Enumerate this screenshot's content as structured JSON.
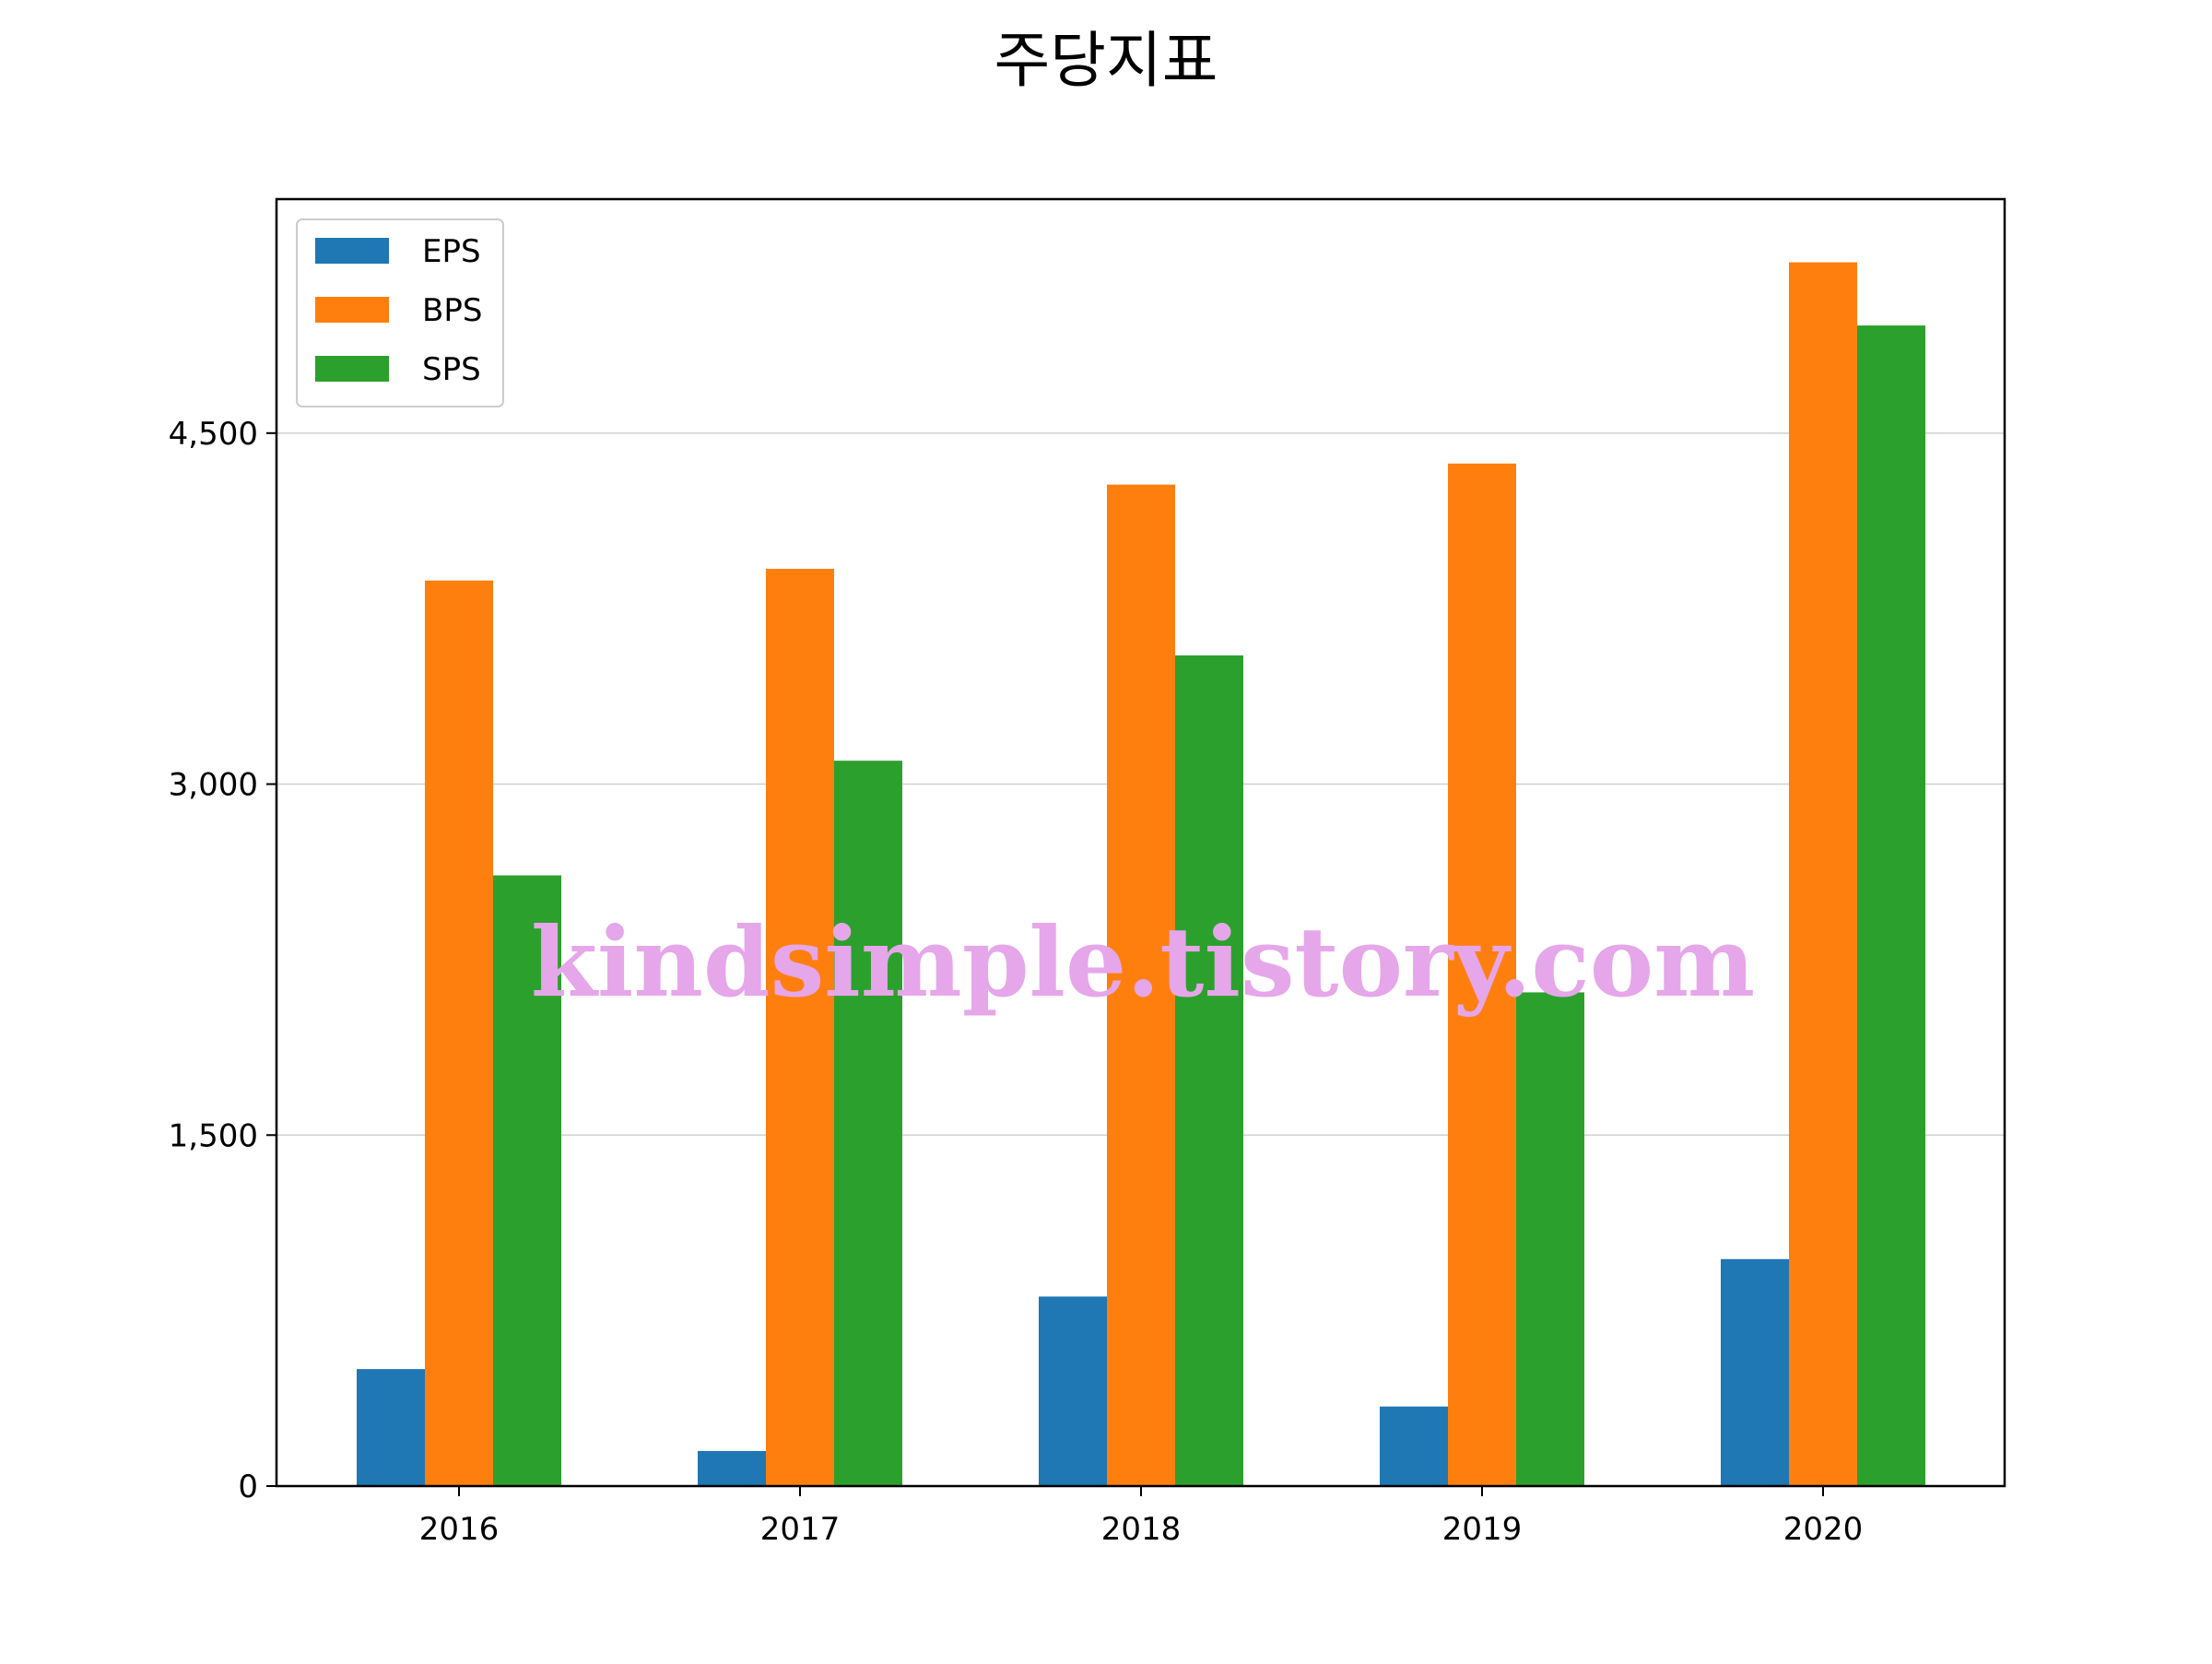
{
  "chart_data": {
    "type": "bar",
    "title": "주당지표",
    "xlabel": "",
    "ylabel": "",
    "categories": [
      "2016",
      "2017",
      "2018",
      "2019",
      "2020"
    ],
    "series": [
      {
        "name": "EPS",
        "color": "#1f77b4",
        "values": [
          500,
          150,
          810,
          340,
          970
        ]
      },
      {
        "name": "BPS",
        "color": "#ff7f0e",
        "values": [
          3870,
          3920,
          4280,
          4370,
          5230
        ]
      },
      {
        "name": "SPS",
        "color": "#2ca02c",
        "values": [
          2610,
          3100,
          3550,
          2110,
          4960
        ]
      }
    ],
    "y_ticks": [
      0,
      1500,
      3000,
      4500
    ],
    "y_tick_labels": [
      "0",
      "1,500",
      "3,000",
      "4,500"
    ],
    "ylim": [
      0,
      5500
    ],
    "grid": "horizontal",
    "legend_position": "top-left",
    "watermark": "kindsimple.tistory.com"
  }
}
